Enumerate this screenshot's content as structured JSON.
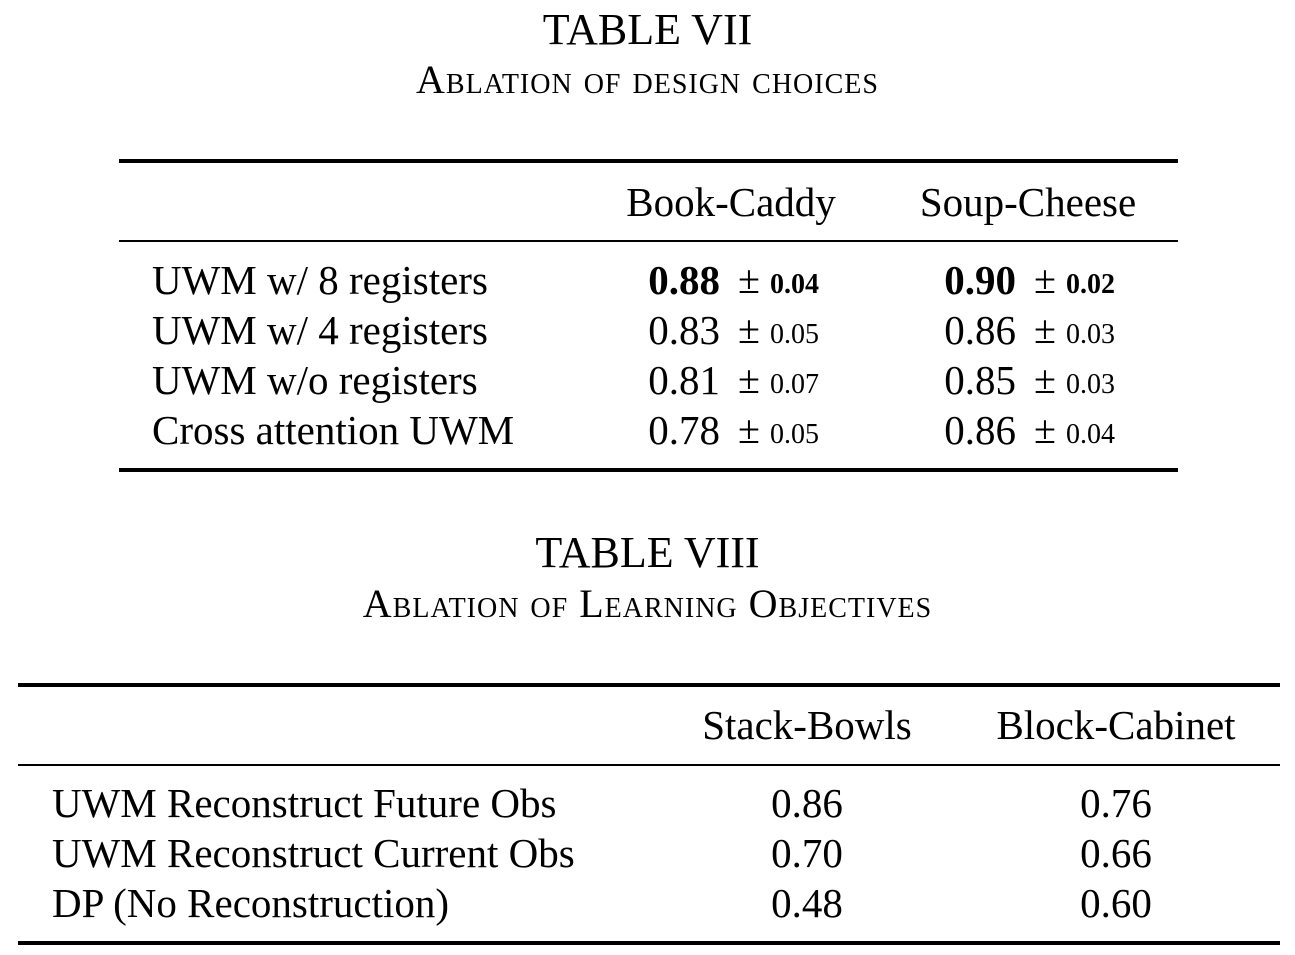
{
  "table7": {
    "number": "TABLE VII",
    "title": "Ablation of design choices",
    "columns": [
      "Book-Caddy",
      "Soup-Cheese"
    ],
    "rows": [
      {
        "label": "UWM w/ 8 registers",
        "c1": "0.88",
        "c1_std": "0.04",
        "c2": "0.90",
        "c2_std": "0.02",
        "bold": true
      },
      {
        "label": "UWM w/ 4 registers",
        "c1": "0.83",
        "c1_std": "0.05",
        "c2": "0.86",
        "c2_std": "0.03",
        "bold": false
      },
      {
        "label": "UWM w/o registers",
        "c1": "0.81",
        "c1_std": "0.07",
        "c2": "0.85",
        "c2_std": "0.03",
        "bold": false
      },
      {
        "label": "Cross attention UWM",
        "c1": "0.78",
        "c1_std": "0.05",
        "c2": "0.86",
        "c2_std": "0.04",
        "bold": false
      }
    ]
  },
  "table8": {
    "number": "TABLE VIII",
    "title": "Ablation of Learning Objectives",
    "columns": [
      "Stack-Bowls",
      "Block-Cabinet"
    ],
    "rows": [
      {
        "label": "UWM Reconstruct Future Obs",
        "c1": "0.86",
        "c2": "0.76"
      },
      {
        "label": "UWM Reconstruct Current Obs",
        "c1": "0.70",
        "c2": "0.66"
      },
      {
        "label": "DP (No Reconstruction)",
        "c1": "0.48",
        "c2": "0.60"
      }
    ]
  },
  "pm_symbol": "±"
}
